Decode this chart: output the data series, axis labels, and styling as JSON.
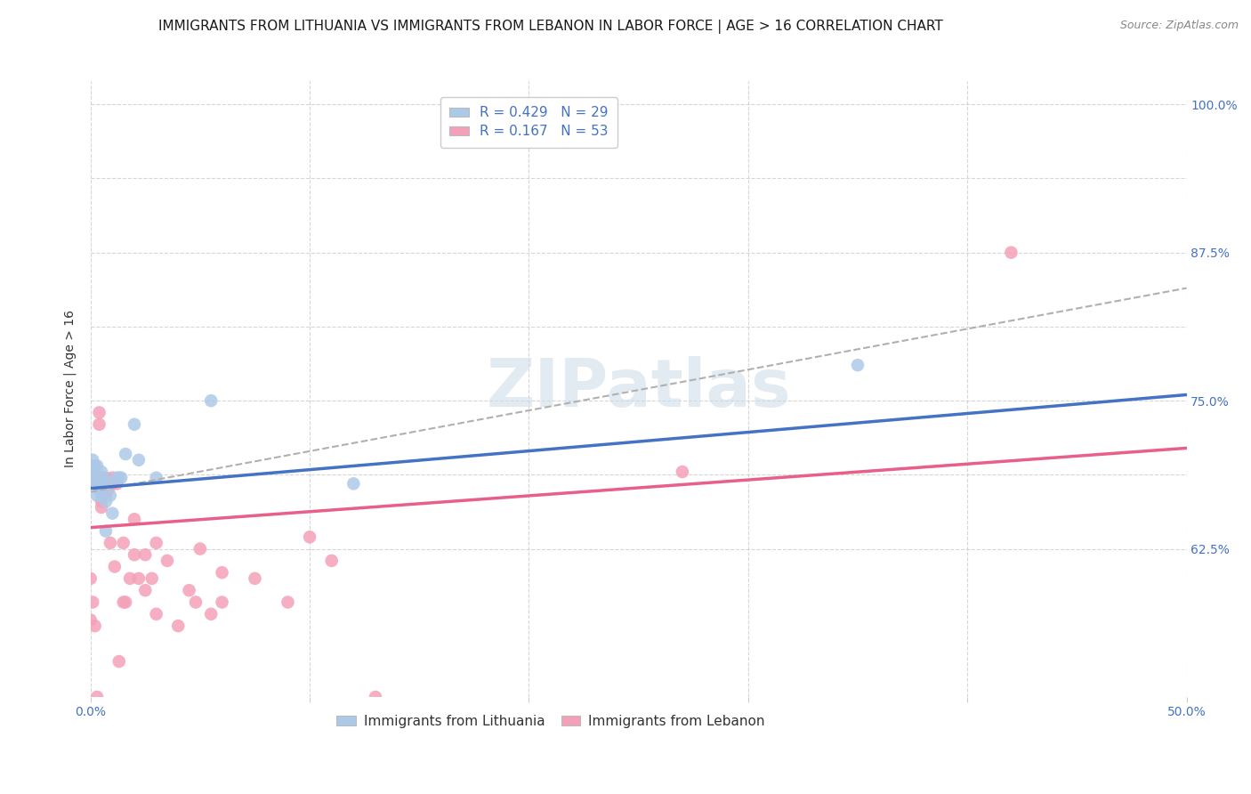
{
  "title": "IMMIGRANTS FROM LITHUANIA VS IMMIGRANTS FROM LEBANON IN LABOR FORCE | AGE > 16 CORRELATION CHART",
  "source": "Source: ZipAtlas.com",
  "ylabel_label": "In Labor Force | Age > 16",
  "xlim": [
    0.0,
    0.5
  ],
  "ylim": [
    0.5,
    1.02
  ],
  "xticks": [
    0.0,
    0.1,
    0.2,
    0.3,
    0.4,
    0.5
  ],
  "xtick_labels": [
    "0.0%",
    "",
    "",
    "",
    "",
    "50.0%"
  ],
  "ytick_labels": [
    "62.5%",
    "",
    "75.0%",
    "",
    "87.5%",
    "",
    "100.0%"
  ],
  "yticks": [
    0.625,
    0.6875,
    0.75,
    0.8125,
    0.875,
    0.9375,
    1.0
  ],
  "grid_color": "#cccccc",
  "background_color": "#ffffff",
  "watermark": "ZIPatlas",
  "series": [
    {
      "name": "Immigrants from Lithuania",
      "R": 0.429,
      "N": 29,
      "color": "#adc9e8",
      "line_color": "#4472c4",
      "trendline_x": [
        0.0,
        0.5
      ],
      "trendline_y": [
        0.676,
        0.755
      ],
      "x": [
        0.0,
        0.001,
        0.002,
        0.002,
        0.003,
        0.003,
        0.004,
        0.005,
        0.006,
        0.007,
        0.008,
        0.009,
        0.01,
        0.012,
        0.014,
        0.016,
        0.02,
        0.022,
        0.03,
        0.055,
        0.12,
        0.35,
        0.001,
        0.002,
        0.003,
        0.004,
        0.005,
        0.007,
        0.013
      ],
      "y": [
        0.685,
        0.7,
        0.695,
        0.685,
        0.695,
        0.685,
        0.68,
        0.69,
        0.685,
        0.665,
        0.68,
        0.67,
        0.655,
        0.685,
        0.685,
        0.705,
        0.73,
        0.7,
        0.685,
        0.75,
        0.68,
        0.78,
        0.695,
        0.68,
        0.67,
        0.675,
        0.67,
        0.64,
        0.685
      ]
    },
    {
      "name": "Immigrants from Lebanon",
      "R": 0.167,
      "N": 53,
      "color": "#f4a0b8",
      "line_color": "#e8608a",
      "trendline_x": [
        0.0,
        0.5
      ],
      "trendline_y": [
        0.643,
        0.71
      ],
      "x": [
        0.0,
        0.0,
        0.001,
        0.001,
        0.002,
        0.002,
        0.003,
        0.003,
        0.004,
        0.004,
        0.005,
        0.005,
        0.006,
        0.006,
        0.007,
        0.008,
        0.009,
        0.01,
        0.011,
        0.012,
        0.013,
        0.015,
        0.016,
        0.018,
        0.02,
        0.022,
        0.025,
        0.028,
        0.03,
        0.035,
        0.04,
        0.045,
        0.05,
        0.055,
        0.06,
        0.075,
        0.09,
        0.1,
        0.11,
        0.13,
        0.27,
        0.42,
        0.002,
        0.003,
        0.005,
        0.007,
        0.01,
        0.015,
        0.02,
        0.025,
        0.03,
        0.048,
        0.06
      ],
      "y": [
        0.6,
        0.565,
        0.685,
        0.58,
        0.695,
        0.56,
        0.68,
        0.5,
        0.74,
        0.73,
        0.685,
        0.66,
        0.685,
        0.67,
        0.685,
        0.675,
        0.63,
        0.685,
        0.61,
        0.68,
        0.53,
        0.58,
        0.58,
        0.6,
        0.65,
        0.6,
        0.59,
        0.6,
        0.57,
        0.615,
        0.56,
        0.59,
        0.625,
        0.57,
        0.605,
        0.6,
        0.58,
        0.635,
        0.615,
        0.5,
        0.69,
        0.875,
        0.68,
        0.685,
        0.665,
        0.67,
        0.68,
        0.63,
        0.62,
        0.62,
        0.63,
        0.58,
        0.58
      ]
    }
  ],
  "dashed_line_x": [
    0.0,
    0.5
  ],
  "dashed_line_y": [
    0.673,
    0.845
  ],
  "dashed_line_color": "#b0b0b0",
  "title_fontsize": 11,
  "axis_label_fontsize": 10,
  "tick_fontsize": 10,
  "legend_fontsize": 11,
  "source_fontsize": 9,
  "right_tick_color": "#4472c4"
}
